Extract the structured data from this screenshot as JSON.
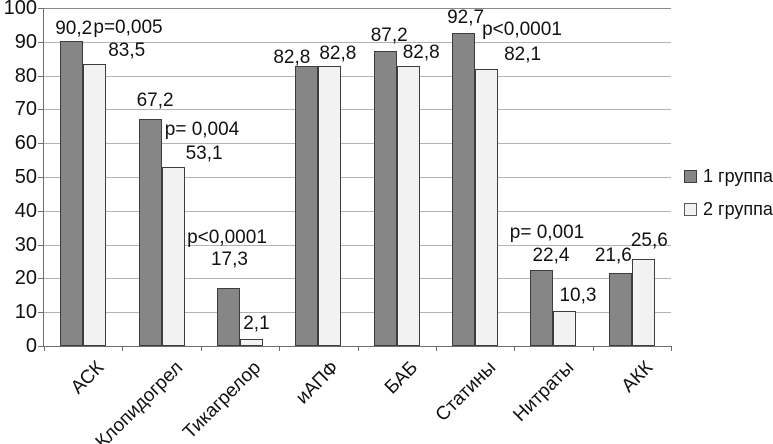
{
  "chart_data": {
    "type": "bar",
    "title": "",
    "xlabel": "",
    "ylabel": "",
    "categories": [
      "АСК",
      "Клопидогрел",
      "Тикагрелор",
      "иАПФ",
      "БАБ",
      "Статины",
      "Нитраты",
      "АКК"
    ],
    "series": [
      {
        "name": "1 группа",
        "color": "#868686",
        "values": [
          90.2,
          67.2,
          17.3,
          82.8,
          87.2,
          92.7,
          22.4,
          21.6
        ]
      },
      {
        "name": "2 группа",
        "color": "#f2f2f2",
        "values": [
          83.5,
          53.1,
          2.1,
          82.8,
          82.8,
          82.1,
          10.3,
          25.6
        ]
      }
    ],
    "data_labels": [
      [
        "90,2",
        "67,2",
        "17,3",
        "82,8",
        "87,2",
        "92,7",
        "22,4",
        "21,6"
      ],
      [
        "83,5",
        "53,1",
        "2,1",
        "82,8",
        "82,8",
        "82,1",
        "10,3",
        "25,6"
      ]
    ],
    "p_value_annotations": [
      "p=0,005",
      "p= 0,004",
      "p<0,0001",
      null,
      null,
      "p<0,0001",
      "p= 0,001",
      null
    ],
    "ylim": [
      0,
      100
    ],
    "ytick_step": 10,
    "ytick_labels": [
      "0",
      "10",
      "20",
      "30",
      "40",
      "50",
      "60",
      "70",
      "80",
      "90",
      "100"
    ],
    "grid": true,
    "legend_position": "right"
  }
}
